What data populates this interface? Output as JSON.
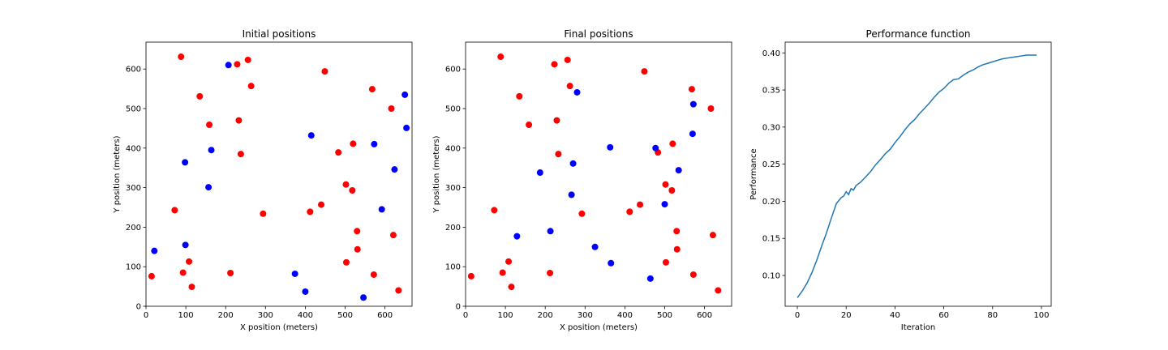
{
  "chart_data": [
    {
      "type": "scatter",
      "title": "Initial positions",
      "xlabel": "X position (meters)",
      "ylabel": "Y position (meters)",
      "xlim": [
        0,
        668
      ],
      "ylim": [
        0,
        668
      ],
      "xticks": [
        0,
        100,
        200,
        300,
        400,
        500,
        600
      ],
      "yticks": [
        0,
        100,
        200,
        300,
        400,
        500,
        600
      ],
      "grid": false,
      "series": [
        {
          "color": "#ff0000",
          "points": [
            [
              14,
              76
            ],
            [
              88,
              631
            ],
            [
              72,
              243
            ],
            [
              93,
              85
            ],
            [
              108,
              113
            ],
            [
              115,
              49
            ],
            [
              135,
              531
            ],
            [
              159,
              459
            ],
            [
              212,
              84
            ],
            [
              229,
              612
            ],
            [
              233,
              470
            ],
            [
              238,
              385
            ],
            [
              256,
              623
            ],
            [
              264,
              557
            ],
            [
              294,
              234
            ],
            [
              412,
              239
            ],
            [
              440,
              257
            ],
            [
              449,
              594
            ],
            [
              483,
              389
            ],
            [
              502,
              308
            ],
            [
              503,
              111
            ],
            [
              518,
              293
            ],
            [
              520,
              411
            ],
            [
              530,
              190
            ],
            [
              531,
              144
            ],
            [
              568,
              549
            ],
            [
              572,
              80
            ],
            [
              616,
              500
            ],
            [
              621,
              180
            ],
            [
              634,
              40
            ]
          ]
        },
        {
          "color": "#0000ff",
          "points": [
            [
              21,
              140
            ],
            [
              98,
              364
            ],
            [
              99,
              155
            ],
            [
              157,
              301
            ],
            [
              164,
              395
            ],
            [
              207,
              610
            ],
            [
              374,
              82
            ],
            [
              400,
              37
            ],
            [
              415,
              432
            ],
            [
              546,
              22
            ],
            [
              573,
              410
            ],
            [
              592,
              245
            ],
            [
              624,
              346
            ],
            [
              650,
              535
            ],
            [
              654,
              451
            ]
          ]
        }
      ]
    },
    {
      "type": "scatter",
      "title": "Final positions",
      "xlabel": "X position (meters)",
      "ylabel": "Y position (meters)",
      "xlim": [
        0,
        668
      ],
      "ylim": [
        0,
        668
      ],
      "xticks": [
        0,
        100,
        200,
        300,
        400,
        500,
        600
      ],
      "yticks": [
        0,
        100,
        200,
        300,
        400,
        500,
        600
      ],
      "grid": false,
      "series": [
        {
          "color": "#ff0000",
          "points": [
            [
              14,
              76
            ],
            [
              88,
              631
            ],
            [
              72,
              243
            ],
            [
              93,
              85
            ],
            [
              108,
              113
            ],
            [
              115,
              49
            ],
            [
              135,
              531
            ],
            [
              159,
              459
            ],
            [
              212,
              84
            ],
            [
              223,
              612
            ],
            [
              229,
              470
            ],
            [
              233,
              385
            ],
            [
              256,
              623
            ],
            [
              262,
              557
            ],
            [
              292,
              234
            ],
            [
              412,
              239
            ],
            [
              438,
              257
            ],
            [
              449,
              594
            ],
            [
              483,
              389
            ],
            [
              502,
              308
            ],
            [
              503,
              111
            ],
            [
              518,
              293
            ],
            [
              520,
              411
            ],
            [
              530,
              190
            ],
            [
              531,
              144
            ],
            [
              568,
              549
            ],
            [
              572,
              80
            ],
            [
              616,
              500
            ],
            [
              621,
              180
            ],
            [
              634,
              40
            ]
          ]
        },
        {
          "color": "#0000ff",
          "points": [
            [
              129,
              177
            ],
            [
              187,
              338
            ],
            [
              213,
              190
            ],
            [
              266,
              282
            ],
            [
              270,
              361
            ],
            [
              280,
              541
            ],
            [
              325,
              150
            ],
            [
              363,
              402
            ],
            [
              365,
              109
            ],
            [
              464,
              70
            ],
            [
              477,
              400
            ],
            [
              500,
              258
            ],
            [
              535,
              344
            ],
            [
              570,
              436
            ],
            [
              572,
              511
            ]
          ]
        }
      ]
    },
    {
      "type": "line",
      "title": "Performance function",
      "xlabel": "Iteration",
      "ylabel": "Performance",
      "xlim": [
        -5,
        104
      ],
      "ylim": [
        0.0585,
        0.4145
      ],
      "xticks": [
        0,
        20,
        40,
        60,
        80,
        100
      ],
      "yticks": [
        0.1,
        0.15,
        0.2,
        0.25,
        0.3,
        0.35,
        0.4
      ],
      "grid": false,
      "series": [
        {
          "color": "#1f77b4",
          "x": [
            0,
            2,
            4,
            6,
            8,
            10,
            12,
            14,
            16,
            17,
            18,
            19,
            20,
            21,
            22,
            23,
            24,
            26,
            28,
            30,
            32,
            34,
            36,
            38,
            40,
            42,
            44,
            46,
            48,
            50,
            52,
            54,
            56,
            58,
            60,
            62,
            64,
            66,
            68,
            70,
            72,
            74,
            76,
            78,
            80,
            82,
            84,
            86,
            88,
            90,
            92,
            94,
            96,
            98
          ],
          "values": [
            0.07,
            0.079,
            0.09,
            0.104,
            0.121,
            0.14,
            0.158,
            0.178,
            0.197,
            0.201,
            0.205,
            0.207,
            0.213,
            0.209,
            0.217,
            0.215,
            0.221,
            0.226,
            0.233,
            0.24,
            0.249,
            0.256,
            0.264,
            0.27,
            0.279,
            0.287,
            0.296,
            0.304,
            0.31,
            0.318,
            0.325,
            0.332,
            0.34,
            0.347,
            0.352,
            0.359,
            0.364,
            0.365,
            0.37,
            0.374,
            0.377,
            0.381,
            0.384,
            0.386,
            0.388,
            0.39,
            0.392,
            0.393,
            0.394,
            0.395,
            0.396,
            0.397,
            0.397,
            0.397
          ]
        }
      ]
    }
  ]
}
